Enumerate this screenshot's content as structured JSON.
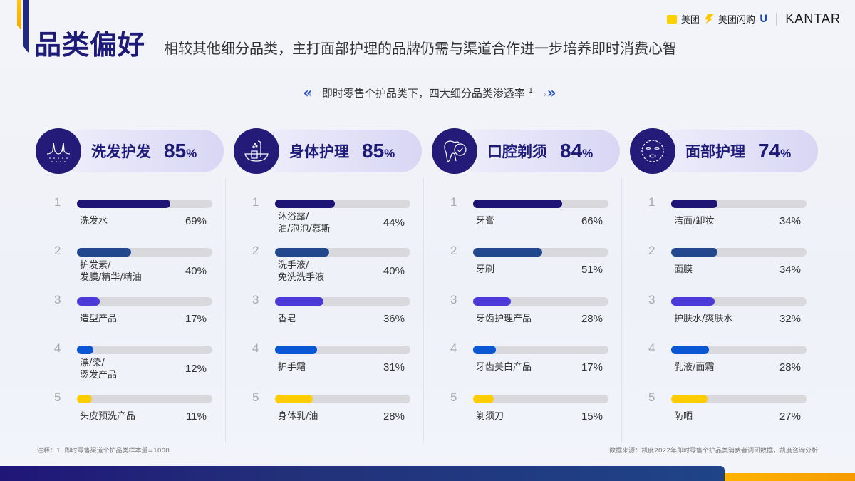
{
  "header": {
    "title": "品类偏好",
    "subtitle": "相较其他细分品类，主打面部护理的品牌仍需与渠道合作进一步培养即时消费心智"
  },
  "logos": {
    "meituan_badge": "美团",
    "meituan": "美团",
    "meituan_flash": "美团闪购",
    "unilever": "U",
    "kantar": "KANTAR"
  },
  "caption": {
    "text": "即时零售个护品类下，四大细分品类渗透率",
    "footnote_ref": "1",
    "left_chevron": "«",
    "left_chevron_light": "‹",
    "right_chevron_light": "›",
    "right_chevron": "»"
  },
  "colors": {
    "brand_navy": "#1d1a78",
    "icon_bg": "#241b78",
    "track": "#d9d9dd",
    "rank_colors": [
      "#1d1476",
      "#21478c",
      "#4b3ad8",
      "#0a57d6",
      "#ffcc00"
    ]
  },
  "categories": [
    {
      "name": "洗发护发",
      "pct": "85",
      "pct_sign": "%",
      "icon": "hair-icon",
      "items": [
        {
          "rank": "1",
          "label": "洗发水",
          "value": "69%",
          "num": 69
        },
        {
          "rank": "2",
          "label": "护发素/发膜/精华/精油",
          "value": "40%",
          "num": 40
        },
        {
          "rank": "3",
          "label": "造型产品",
          "value": "17%",
          "num": 17
        },
        {
          "rank": "4",
          "label": "漂/染/烫发产品",
          "value": "12%",
          "num": 12
        },
        {
          "rank": "5",
          "label": "头皮预洗产品",
          "value": "11%",
          "num": 11
        }
      ]
    },
    {
      "name": "身体护理",
      "pct": "85",
      "pct_sign": "%",
      "icon": "bath-icon",
      "items": [
        {
          "rank": "1",
          "label": "沐浴露/油/泡泡/慕斯",
          "value": "44%",
          "num": 44
        },
        {
          "rank": "2",
          "label": "洗手液/免洗洗手液",
          "value": "40%",
          "num": 40
        },
        {
          "rank": "3",
          "label": "香皂",
          "value": "36%",
          "num": 36
        },
        {
          "rank": "4",
          "label": "护手霜",
          "value": "31%",
          "num": 31
        },
        {
          "rank": "5",
          "label": "身体乳/油",
          "value": "28%",
          "num": 28
        }
      ]
    },
    {
      "name": "口腔剃须",
      "pct": "84",
      "pct_sign": "%",
      "icon": "tooth-icon",
      "items": [
        {
          "rank": "1",
          "label": "牙膏",
          "value": "66%",
          "num": 66
        },
        {
          "rank": "2",
          "label": "牙刷",
          "value": "51%",
          "num": 51
        },
        {
          "rank": "3",
          "label": "牙齿护理产品",
          "value": "28%",
          "num": 28
        },
        {
          "rank": "4",
          "label": "牙齿美白产品",
          "value": "17%",
          "num": 17
        },
        {
          "rank": "5",
          "label": "剃须刀",
          "value": "15%",
          "num": 15
        }
      ]
    },
    {
      "name": "面部护理",
      "pct": "74",
      "pct_sign": "%",
      "icon": "face-mask-icon",
      "items": [
        {
          "rank": "1",
          "label": "洁面/卸妆",
          "value": "34%",
          "num": 34
        },
        {
          "rank": "2",
          "label": "面膜",
          "value": "34%",
          "num": 34
        },
        {
          "rank": "3",
          "label": "护肤水/爽肤水",
          "value": "32%",
          "num": 32
        },
        {
          "rank": "4",
          "label": "乳液/面霜",
          "value": "28%",
          "num": 28
        },
        {
          "rank": "5",
          "label": "防晒",
          "value": "27%",
          "num": 27
        }
      ]
    }
  ],
  "footer": {
    "note": "注释：1. 即时零售渠道个护品类样本量=1000",
    "source": "数据来源：凯度2022年即时零售个护品类消费者调研数据，凯度咨询分析"
  },
  "chart_data": {
    "type": "bar",
    "title": "即时零售个护品类下，四大细分品类渗透率",
    "orientation": "horizontal",
    "unit": "%",
    "xlim": [
      0,
      100
    ],
    "groups": [
      {
        "name": "洗发护发",
        "total": 85,
        "categories": [
          "洗发水",
          "护发素/发膜/精华/精油",
          "造型产品",
          "漂/染/烫发产品",
          "头皮预洗产品"
        ],
        "values": [
          69,
          40,
          17,
          12,
          11
        ]
      },
      {
        "name": "身体护理",
        "total": 85,
        "categories": [
          "沐浴露/油/泡泡/慕斯",
          "洗手液/免洗洗手液",
          "香皂",
          "护手霜",
          "身体乳/油"
        ],
        "values": [
          44,
          40,
          36,
          31,
          28
        ]
      },
      {
        "name": "口腔剃须",
        "total": 84,
        "categories": [
          "牙膏",
          "牙刷",
          "牙齿护理产品",
          "牙齿美白产品",
          "剃须刀"
        ],
        "values": [
          66,
          51,
          28,
          17,
          15
        ]
      },
      {
        "name": "面部护理",
        "total": 74,
        "categories": [
          "洁面/卸妆",
          "面膜",
          "护肤水/爽肤水",
          "乳液/面霜",
          "防晒"
        ],
        "values": [
          34,
          34,
          32,
          28,
          27
        ]
      }
    ]
  }
}
